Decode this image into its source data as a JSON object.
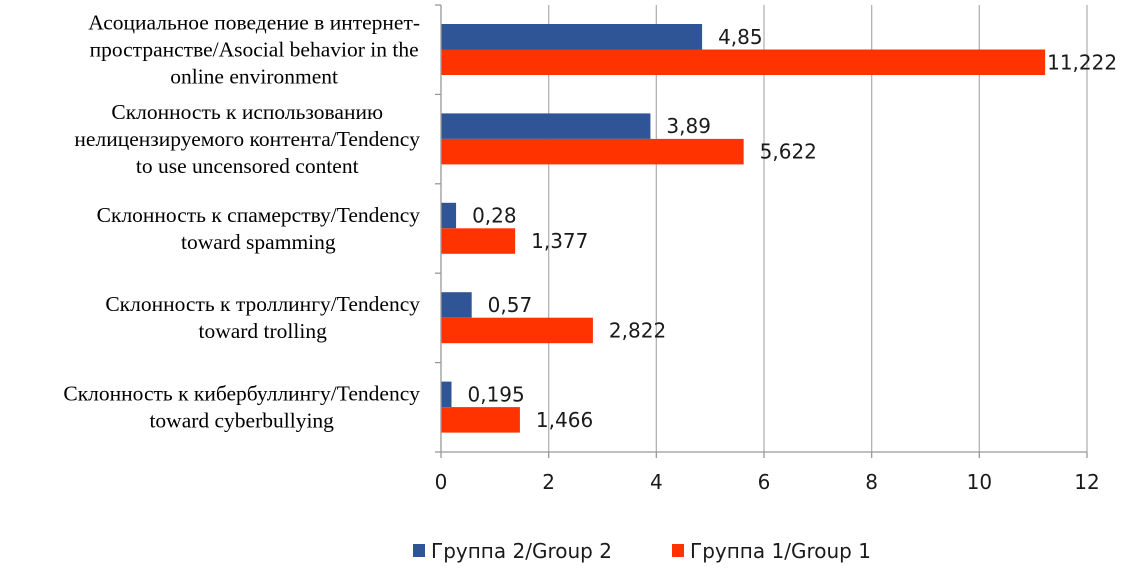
{
  "chart_data": {
    "type": "bar",
    "orientation": "horizontal",
    "title": "",
    "xlabel": "",
    "ylabel": "",
    "xlim": [
      0,
      12
    ],
    "x_ticks": [
      "0",
      "2",
      "4",
      "6",
      "8",
      "10",
      "12"
    ],
    "grid": true,
    "legend_position": "bottom",
    "categories": [
      [
        "Асоциальное поведение в интернет-",
        "пространстве/Asocial behavior in the",
        "online environment"
      ],
      [
        "Склонность к использованию",
        "нелицензируемого контента/Tendency",
        "to use uncensored content"
      ],
      [
        "Склонность к спамерству/Tendency",
        "toward spamming"
      ],
      [
        "Склонность к троллингу/Tendency",
        "toward trolling"
      ],
      [
        "Склонность к кибербуллингу/Tendency",
        "toward cyberbullying"
      ]
    ],
    "series": [
      {
        "name": "Группа 2/Group 2",
        "color": "#2F5597",
        "values": [
          4.85,
          3.89,
          0.28,
          0.57,
          0.195
        ],
        "labels": [
          "4,85",
          "3,89",
          "0,28",
          "0,57",
          "0,195"
        ]
      },
      {
        "name": "Группа 1/Group 1",
        "color": "#FF3300",
        "values": [
          11.222,
          5.622,
          1.377,
          2.822,
          1.466
        ],
        "labels": [
          "11,222",
          "5,622",
          "1,377",
          "2,822",
          "1,466"
        ]
      }
    ]
  }
}
